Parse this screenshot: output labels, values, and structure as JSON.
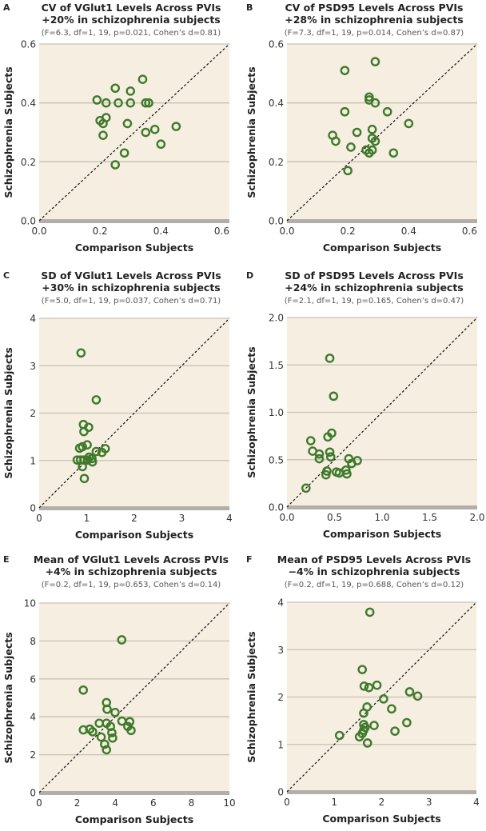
{
  "chart_data": [
    {
      "type": "scatter",
      "panel": "A",
      "title": "CV of VGlut1 Levels Across PVIs",
      "subtitle": "+20% in schizophrenia subjects",
      "stats": "(F=6.3, df=1, 19, p=0.021, Cohen’s d=0.81)",
      "xlabel": "Comparison Subjects",
      "ylabel": "Schizophrenia Subjects",
      "xlim": [
        0,
        0.625
      ],
      "ylim": [
        0,
        0.6
      ],
      "xticks": [
        "0.0",
        "0.2",
        "0.4",
        "0.6"
      ],
      "xtick_values": [
        0,
        0.2,
        0.4,
        0.6
      ],
      "yticks": [
        "0.0",
        "0.2",
        "0.4",
        "0.6"
      ],
      "ytick_values": [
        0,
        0.2,
        0.4,
        0.6
      ],
      "points": [
        [
          0.19,
          0.41
        ],
        [
          0.2,
          0.34
        ],
        [
          0.21,
          0.33
        ],
        [
          0.21,
          0.29
        ],
        [
          0.22,
          0.4
        ],
        [
          0.22,
          0.35
        ],
        [
          0.25,
          0.45
        ],
        [
          0.26,
          0.4
        ],
        [
          0.25,
          0.19
        ],
        [
          0.28,
          0.23
        ],
        [
          0.29,
          0.33
        ],
        [
          0.3,
          0.44
        ],
        [
          0.3,
          0.4
        ],
        [
          0.34,
          0.48
        ],
        [
          0.35,
          0.4
        ],
        [
          0.36,
          0.4
        ],
        [
          0.35,
          0.3
        ],
        [
          0.38,
          0.31
        ],
        [
          0.4,
          0.26
        ],
        [
          0.45,
          0.32
        ]
      ]
    },
    {
      "type": "scatter",
      "panel": "B",
      "title": "CV of PSD95 Levels Across PVIs",
      "subtitle": "+28% in schizophrenia subjects",
      "stats": "(F=7.3, df=1, 19, p=0.014, Cohen’s d=0.87)",
      "xlabel": "Comparison Subjects",
      "ylabel": "Schizophrenia Subjects",
      "xlim": [
        0,
        0.625
      ],
      "ylim": [
        0,
        0.6
      ],
      "xticks": [
        "0.0",
        "0.2",
        "0.4",
        "0.6"
      ],
      "xtick_values": [
        0,
        0.2,
        0.4,
        0.6
      ],
      "yticks": [
        "0.0",
        "0.2",
        "0.4",
        "0.6"
      ],
      "ytick_values": [
        0,
        0.2,
        0.4,
        0.6
      ],
      "points": [
        [
          0.19,
          0.51
        ],
        [
          0.29,
          0.54
        ],
        [
          0.27,
          0.42
        ],
        [
          0.27,
          0.41
        ],
        [
          0.29,
          0.4
        ],
        [
          0.19,
          0.37
        ],
        [
          0.33,
          0.37
        ],
        [
          0.4,
          0.33
        ],
        [
          0.15,
          0.29
        ],
        [
          0.16,
          0.27
        ],
        [
          0.23,
          0.3
        ],
        [
          0.28,
          0.31
        ],
        [
          0.28,
          0.28
        ],
        [
          0.29,
          0.27
        ],
        [
          0.21,
          0.25
        ],
        [
          0.26,
          0.24
        ],
        [
          0.28,
          0.24
        ],
        [
          0.27,
          0.23
        ],
        [
          0.35,
          0.23
        ],
        [
          0.2,
          0.17
        ]
      ]
    },
    {
      "type": "scatter",
      "panel": "C",
      "title": "SD of VGlut1 Levels Across PVIs",
      "subtitle": "+30% in schizophrenia subjects",
      "stats": "(F=5.0, df=1, 19, p=0.037, Cohen’s d=0.71)",
      "xlabel": "Comparison Subjects",
      "ylabel": "Schizophrenia Subjects",
      "xlim": [
        0,
        4
      ],
      "ylim": [
        0,
        4
      ],
      "xticks": [
        "0",
        "1",
        "2",
        "3",
        "4"
      ],
      "xtick_values": [
        0,
        1,
        2,
        3,
        4
      ],
      "yticks": [
        "0",
        "1",
        "2",
        "3",
        "4"
      ],
      "ytick_values": [
        0,
        1,
        2,
        3,
        4
      ],
      "points": [
        [
          0.88,
          3.27
        ],
        [
          1.2,
          2.28
        ],
        [
          0.93,
          1.76
        ],
        [
          1.04,
          1.7
        ],
        [
          0.94,
          1.61
        ],
        [
          0.85,
          1.26
        ],
        [
          0.91,
          1.29
        ],
        [
          1.01,
          1.33
        ],
        [
          1.2,
          1.19
        ],
        [
          1.39,
          1.25
        ],
        [
          1.32,
          1.17
        ],
        [
          0.8,
          1.01
        ],
        [
          0.87,
          1.01
        ],
        [
          0.94,
          1.01
        ],
        [
          1.05,
          1.07
        ],
        [
          1.11,
          1.04
        ],
        [
          1.12,
          0.97
        ],
        [
          0.91,
          0.87
        ],
        [
          0.95,
          0.62
        ],
        [
          1.02,
          1.01
        ]
      ]
    },
    {
      "type": "scatter",
      "panel": "D",
      "title": "SD of PSD95 Levels Across PVIs",
      "subtitle": "+24% in schizophrenia subjects",
      "stats": "(F=2.1, df=1, 19, p=0.165, Cohen’s d=0.47)",
      "xlabel": "Comparison Subjects",
      "ylabel": "Schizophrenia Subjects",
      "xlim": [
        0,
        2
      ],
      "ylim": [
        0,
        2
      ],
      "xticks": [
        "0.0",
        "0.5",
        "1.0",
        "1.5",
        "2.0"
      ],
      "xtick_values": [
        0,
        0.5,
        1,
        1.5,
        2
      ],
      "yticks": [
        "0.0",
        "0.5",
        "1.0",
        "1.5",
        "2.0"
      ],
      "ytick_values": [
        0,
        0.5,
        1,
        1.5,
        2
      ],
      "points": [
        [
          0.45,
          1.57
        ],
        [
          0.49,
          1.17
        ],
        [
          0.47,
          0.78
        ],
        [
          0.43,
          0.74
        ],
        [
          0.25,
          0.7
        ],
        [
          0.27,
          0.59
        ],
        [
          0.34,
          0.56
        ],
        [
          0.34,
          0.51
        ],
        [
          0.45,
          0.58
        ],
        [
          0.46,
          0.53
        ],
        [
          0.65,
          0.51
        ],
        [
          0.68,
          0.46
        ],
        [
          0.74,
          0.49
        ],
        [
          0.42,
          0.38
        ],
        [
          0.41,
          0.34
        ],
        [
          0.52,
          0.37
        ],
        [
          0.55,
          0.36
        ],
        [
          0.62,
          0.39
        ],
        [
          0.63,
          0.35
        ],
        [
          0.2,
          0.2
        ]
      ]
    },
    {
      "type": "scatter",
      "panel": "E",
      "title": "Mean of VGlut1 Levels Across PVIs",
      "subtitle": "+4% in schizophrenia subjects",
      "stats": "(F=0.2, df=1, 19, p=0.653, Cohen’s d=0.14)",
      "xlabel": "Comparison Subjects",
      "ylabel": "Schizophrenia Subjects",
      "xlim": [
        0,
        10
      ],
      "ylim": [
        0,
        10
      ],
      "xticks": [
        "0",
        "2",
        "4",
        "6",
        "8",
        "10"
      ],
      "xtick_values": [
        0,
        2,
        4,
        6,
        8,
        10
      ],
      "yticks": [
        "0",
        "2",
        "4",
        "6",
        "8",
        "10"
      ],
      "ytick_values": [
        0,
        2,
        4,
        6,
        8,
        10
      ],
      "points": [
        [
          4.34,
          8.06
        ],
        [
          2.32,
          5.41
        ],
        [
          3.54,
          4.75
        ],
        [
          3.57,
          4.4
        ],
        [
          3.99,
          4.23
        ],
        [
          4.35,
          3.77
        ],
        [
          4.76,
          3.74
        ],
        [
          4.66,
          3.49
        ],
        [
          4.83,
          3.28
        ],
        [
          3.16,
          3.66
        ],
        [
          3.54,
          3.66
        ],
        [
          3.75,
          3.49
        ],
        [
          2.32,
          3.31
        ],
        [
          2.66,
          3.35
        ],
        [
          2.81,
          3.21
        ],
        [
          3.82,
          3.16
        ],
        [
          3.86,
          2.88
        ],
        [
          3.26,
          2.93
        ],
        [
          3.44,
          2.55
        ],
        [
          3.54,
          2.26
        ]
      ]
    },
    {
      "type": "scatter",
      "panel": "F",
      "title": "Mean of PSD95 Levels Across PVIs",
      "subtitle": "−4% in schizophrenia subjects",
      "stats": "(F=0.2, df=1, 19, p=0.688, Cohen’s d=0.12)",
      "xlabel": "Comparison Subjects",
      "ylabel": "Schizophrenia Subjects",
      "xlim": [
        0,
        4
      ],
      "ylim": [
        0,
        4
      ],
      "xticks": [
        "0",
        "1",
        "2",
        "3",
        "4"
      ],
      "xtick_values": [
        0,
        1,
        2,
        3,
        4
      ],
      "yticks": [
        "0",
        "1",
        "2",
        "3",
        "4"
      ],
      "ytick_values": [
        0,
        1,
        2,
        3,
        4
      ],
      "points": [
        [
          1.75,
          3.79
        ],
        [
          1.59,
          2.58
        ],
        [
          1.63,
          2.23
        ],
        [
          1.73,
          2.2
        ],
        [
          1.9,
          2.25
        ],
        [
          2.59,
          2.11
        ],
        [
          2.76,
          2.02
        ],
        [
          2.04,
          1.96
        ],
        [
          2.21,
          1.75
        ],
        [
          1.69,
          1.79
        ],
        [
          1.62,
          1.66
        ],
        [
          1.62,
          1.42
        ],
        [
          1.65,
          1.36
        ],
        [
          1.62,
          1.3
        ],
        [
          1.59,
          1.23
        ],
        [
          1.53,
          1.16
        ],
        [
          1.84,
          1.4
        ],
        [
          2.53,
          1.46
        ],
        [
          2.28,
          1.28
        ],
        [
          1.11,
          1.19
        ],
        [
          1.7,
          1.03
        ]
      ]
    }
  ],
  "colors": {
    "background": "#f5eee1",
    "grid": "#c9c1b2",
    "baseline": "#b3aea8",
    "marker": "#3f7a2b",
    "diagonal": "#111111"
  }
}
